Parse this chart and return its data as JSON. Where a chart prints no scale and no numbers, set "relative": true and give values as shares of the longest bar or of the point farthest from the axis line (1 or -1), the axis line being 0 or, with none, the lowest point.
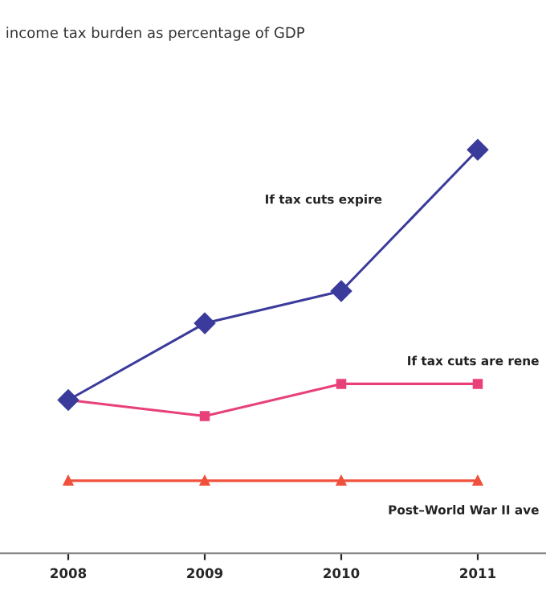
{
  "chart_data": {
    "type": "line",
    "title": "income tax burden as percentage of GDP",
    "relative": true,
    "categories": [
      "2008",
      "2009",
      "2010",
      "2011"
    ],
    "series": [
      {
        "name": "If tax cuts expire",
        "color": "#3b3b9c",
        "marker": "diamond",
        "values": [
          0.38,
          0.57,
          0.65,
          1.0
        ]
      },
      {
        "name": "If tax cuts are rene",
        "color": "#e8407a",
        "marker": "square",
        "values": [
          0.38,
          0.34,
          0.42,
          0.42
        ]
      },
      {
        "name": "Post–World War II ave",
        "color": "#f0503c",
        "marker": "triangle",
        "values": [
          0.18,
          0.18,
          0.18,
          0.18
        ]
      }
    ],
    "grid": false,
    "legend": false
  }
}
